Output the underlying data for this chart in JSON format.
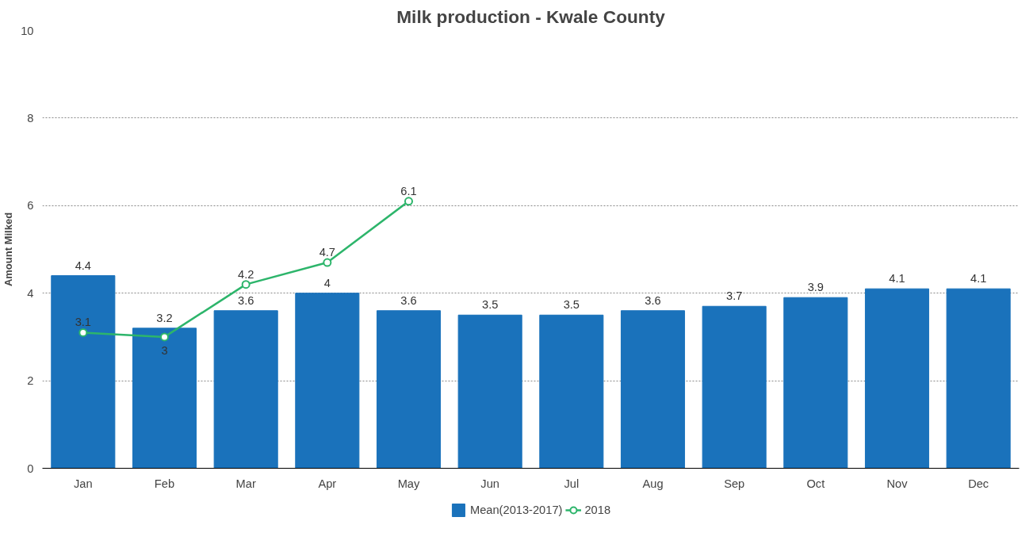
{
  "chart_data": {
    "type": "bar",
    "title": "Milk production - Kwale County",
    "ylabel": "Amount Milked",
    "categories": [
      "Jan",
      "Feb",
      "Mar",
      "Apr",
      "May",
      "Jun",
      "Jul",
      "Aug",
      "Sep",
      "Oct",
      "Nov",
      "Dec"
    ],
    "series": [
      {
        "name": "Mean(2013-2017)",
        "color": "#1a72bb",
        "values": [
          4.4,
          3.2,
          3.6,
          4,
          3.6,
          3.5,
          3.5,
          3.6,
          3.7,
          3.9,
          4.1,
          4.1
        ]
      },
      {
        "name": "2018",
        "type": "line",
        "color": "#2db56b",
        "marker": "circle",
        "values": [
          3.1,
          3,
          4.2,
          4.7,
          6.1,
          null,
          null,
          null,
          null,
          null,
          null,
          null
        ]
      }
    ],
    "ylim": [
      0,
      10
    ],
    "yticks": [
      0,
      2,
      4,
      6,
      8,
      10
    ],
    "grid": "y",
    "legend": "bottom",
    "data_labels": true
  }
}
